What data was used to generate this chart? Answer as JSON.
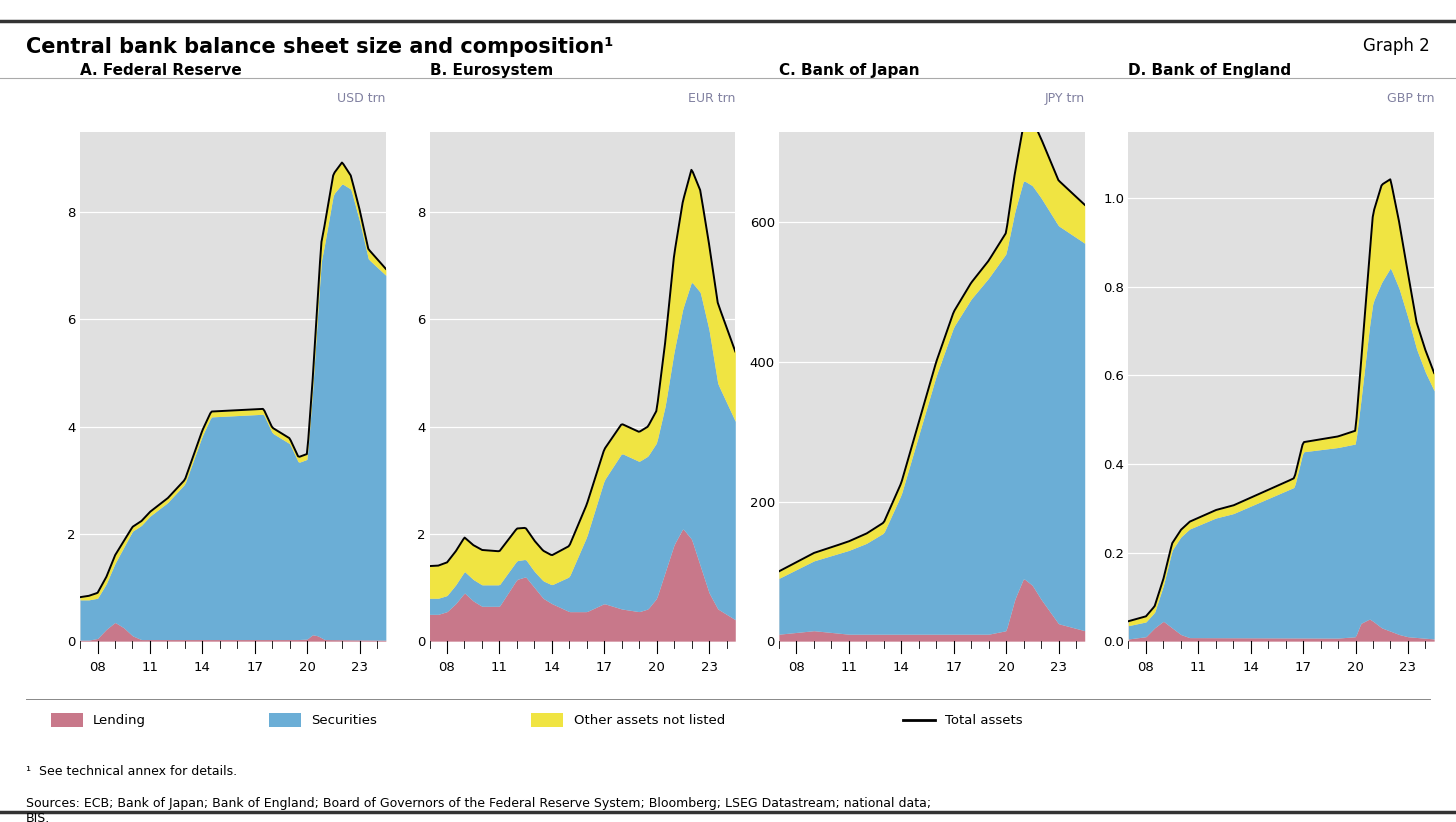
{
  "title": "Central bank balance sheet size and composition¹",
  "graph_label": "Graph 2",
  "footnote": "¹  See technical annex for details.",
  "sources": "Sources: ECB; Bank of Japan; Bank of England; Board of Governors of the Federal Reserve System; Bloomberg; LSEG Datastream; national data;\nBIS.",
  "panels": [
    {
      "label": "A. Federal Reserve",
      "currency": "USD trn",
      "ylim": [
        0,
        9.5
      ],
      "yticks": [
        0,
        2,
        4,
        6,
        8
      ],
      "ytick_labels": [
        "0",
        "2",
        "4",
        "6",
        "8"
      ]
    },
    {
      "label": "B. Eurosystem",
      "currency": "EUR trn",
      "ylim": [
        0,
        9.5
      ],
      "yticks": [
        0,
        2,
        4,
        6,
        8
      ],
      "ytick_labels": [
        "0",
        "2",
        "4",
        "6",
        "8"
      ]
    },
    {
      "label": "C. Bank of Japan",
      "currency": "JPY trn",
      "ylim": [
        0,
        730
      ],
      "yticks": [
        0,
        200,
        400,
        600
      ],
      "ytick_labels": [
        "0",
        "200",
        "400",
        "600"
      ]
    },
    {
      "label": "D. Bank of England",
      "currency": "GBP trn",
      "ylim": [
        0,
        1.15
      ],
      "yticks": [
        0.0,
        0.2,
        0.4,
        0.6,
        0.8,
        1.0
      ],
      "ytick_labels": [
        "0.0",
        "0.2",
        "0.4",
        "0.6",
        "0.8",
        "1.0"
      ]
    }
  ],
  "colors": {
    "lending": "#c8788a",
    "securities": "#6baed6",
    "other": "#f0e442",
    "total": "#000000",
    "bg": "#e0e0e0",
    "currency_color": "#8080a0"
  },
  "legend": [
    {
      "label": "Lending",
      "type": "patch",
      "color": "#c8788a"
    },
    {
      "label": "Securities",
      "type": "patch",
      "color": "#6baed6"
    },
    {
      "label": "Other assets not listed",
      "type": "patch",
      "color": "#f0e442"
    },
    {
      "label": "Total assets",
      "type": "line",
      "color": "#000000"
    }
  ],
  "x_start_year": 2007.0,
  "x_end_year": 2024.5,
  "x_tick_years": [
    2008,
    2011,
    2014,
    2017,
    2020,
    2023
  ]
}
